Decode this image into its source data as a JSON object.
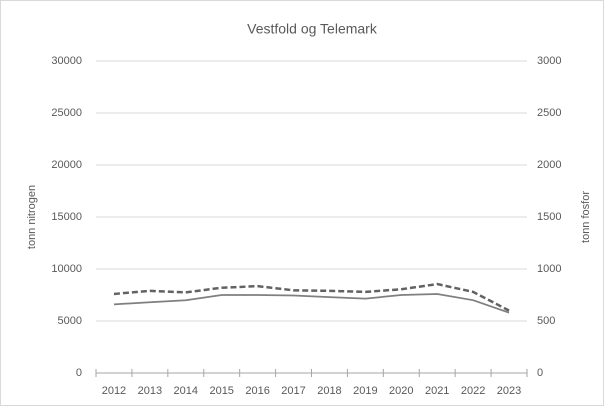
{
  "chart_data": {
    "type": "line",
    "title": "Vestfold og Telemark",
    "categories": [
      2012,
      2013,
      2014,
      2015,
      2016,
      2017,
      2018,
      2019,
      2020,
      2021,
      2022,
      2023
    ],
    "ylabel": "tonn nitrogen",
    "y2label": "tonn fosfor",
    "ylim": [
      0,
      30000
    ],
    "yticks": [
      0,
      5000,
      10000,
      15000,
      20000,
      25000,
      30000
    ],
    "y2lim": [
      0,
      3000
    ],
    "y2ticks": [
      0,
      500,
      1000,
      1500,
      2000,
      2500,
      3000
    ],
    "grid": true,
    "series": [
      {
        "color": "#7f7f7f",
        "dash": "solid",
        "values": [
          6600,
          6800,
          7000,
          7500,
          7500,
          7450,
          7300,
          7150,
          7500,
          7600,
          7000,
          5800
        ]
      },
      {
        "color": "#626262",
        "dash": "dashed",
        "axis": "y2",
        "values": [
          760,
          790,
          775,
          820,
          835,
          795,
          790,
          780,
          805,
          855,
          780,
          600
        ]
      }
    ]
  }
}
